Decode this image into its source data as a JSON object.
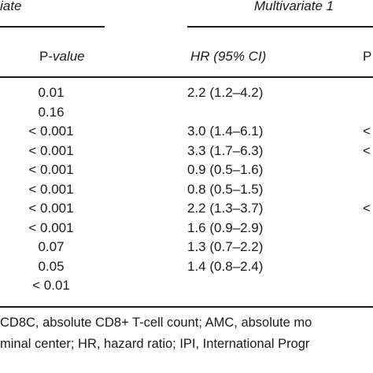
{
  "headers": {
    "univariate_partial": "iate",
    "multivariate": "Multivariate 1"
  },
  "columns": {
    "pvalue_prefix": "P-",
    "pvalue_italic": "value",
    "hr": "HR (95% CI)",
    "right_partial": "P"
  },
  "rows": [
    {
      "p": "0.01",
      "hr": "2.2 (1.2–4.2)",
      "right": ""
    },
    {
      "p": "0.16",
      "hr": "",
      "right": ""
    },
    {
      "p": "< 0.001",
      "hr": "3.0 (1.4–6.1)",
      "right": "<"
    },
    {
      "p": "< 0.001",
      "hr": "3.3 (1.7–6.3)",
      "right": "<"
    },
    {
      "p": "< 0.001",
      "hr": "0.9 (0.5–1.6)",
      "right": ""
    },
    {
      "p": "< 0.001",
      "hr": "0.8 (0.5–1.5)",
      "right": ""
    },
    {
      "p": "< 0.001",
      "hr": "2.2 (1.3–3.7)",
      "right": "<"
    },
    {
      "p": "< 0.001",
      "hr": "1.6 (0.9–2.9)",
      "right": ""
    },
    {
      "p": "0.07",
      "hr": "1.3 (0.7–2.2)",
      "right": ""
    },
    {
      "p": "0.05",
      "hr": "1.4 (0.8–2.4)",
      "right": ""
    },
    {
      "p": "< 0.01",
      "hr": "",
      "right": ""
    }
  ],
  "footnote": {
    "line1": "CD8C, absolute CD8+ T-cell count; AMC, absolute mo",
    "line2": "minal center; HR, hazard ratio; IPI, International Progr"
  }
}
